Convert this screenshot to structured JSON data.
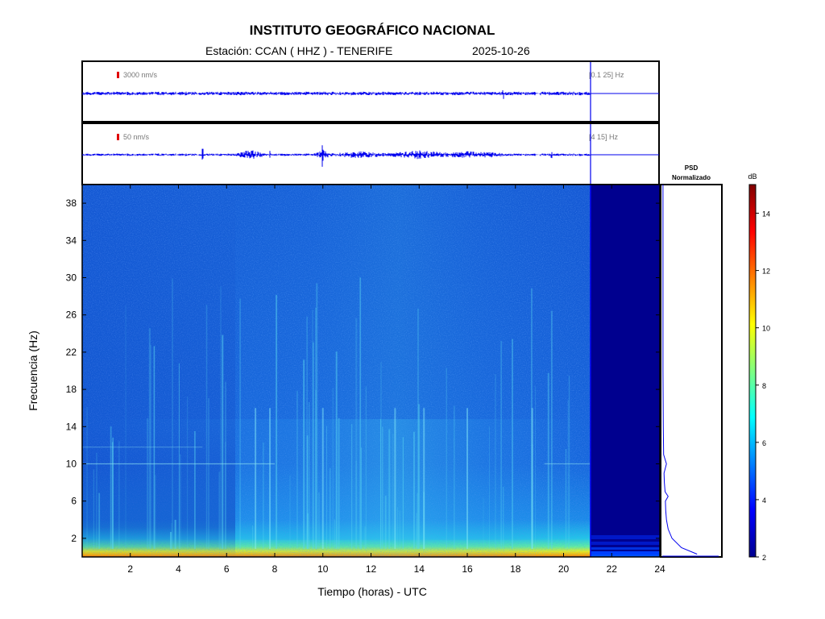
{
  "header": {
    "title": "INSTITUTO GEOGRÁFICO NACIONAL",
    "station": "Estación:  CCAN ( HHZ ) - TENERIFE",
    "date": "2025-10-26"
  },
  "traces": [
    {
      "scale_label": "3000 nm/s",
      "band_label": "[0.1 25] Hz"
    },
    {
      "scale_label": "50 nm/s",
      "band_label": "[4 15] Hz"
    }
  ],
  "psd": {
    "title_line1": "PSD",
    "title_line2": "Normalizado"
  },
  "colorbar": {
    "unit": "dB",
    "range": [
      2,
      15
    ],
    "ticks": [
      "2",
      "4",
      "6",
      "8",
      "10",
      "12",
      "14"
    ]
  },
  "colors": {
    "trace": "#0000ee",
    "colormap": "jet"
  },
  "chart_data": {
    "type": "heatmap",
    "xlabel": "Tiempo (horas) - UTC",
    "ylabel": "Frecuencia  (Hz)",
    "xlim": [
      0,
      24
    ],
    "ylim": [
      0,
      40
    ],
    "xticks": [
      "2",
      "4",
      "6",
      "8",
      "10",
      "12",
      "14",
      "16",
      "18",
      "20",
      "22",
      "24"
    ],
    "yticks": [
      "2",
      "6",
      "10",
      "14",
      "18",
      "22",
      "26",
      "30",
      "34",
      "38"
    ],
    "data_end_hour": 21.1,
    "psd_profile": {
      "freq": [
        0.3,
        1,
        2,
        3,
        4,
        5,
        6,
        6.5,
        7,
        8,
        9,
        10,
        11,
        14,
        20,
        30,
        40
      ],
      "norm": [
        1.0,
        0.55,
        0.28,
        0.17,
        0.12,
        0.1,
        0.09,
        0.17,
        0.08,
        0.06,
        0.05,
        0.12,
        0.04,
        0.03,
        0.02,
        0.02,
        0.02
      ]
    }
  }
}
